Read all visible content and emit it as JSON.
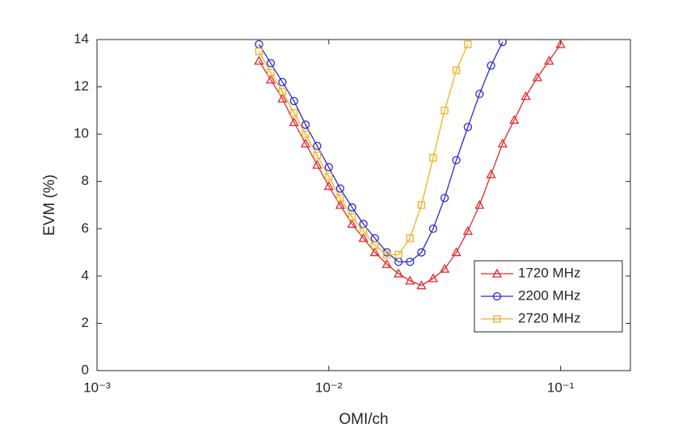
{
  "chart_data": {
    "type": "line",
    "x_label": "OMI/ch",
    "y_label": "EVM (%)",
    "xscale": "log",
    "xlim": [
      0.001,
      0.2
    ],
    "xticks": [
      {
        "value": 0.001,
        "label": "10⁻³"
      },
      {
        "value": 0.01,
        "label": "10⁻²"
      },
      {
        "value": 0.1,
        "label": "10⁻¹"
      }
    ],
    "ylim": [
      0,
      14
    ],
    "yticks": [
      0,
      2,
      4,
      6,
      8,
      10,
      12,
      14
    ],
    "grid": false,
    "legend_position": "southeast",
    "series": [
      {
        "name": "1720 MHz",
        "color": "#e3272a",
        "marker": "triangle",
        "x": [
          0.005,
          0.00562,
          0.00631,
          0.00708,
          0.00794,
          0.00891,
          0.01,
          0.0112,
          0.0126,
          0.0141,
          0.0158,
          0.0178,
          0.02,
          0.0224,
          0.0251,
          0.0282,
          0.0316,
          0.0355,
          0.0398,
          0.0447,
          0.0501,
          0.0562,
          0.0631,
          0.0708,
          0.0794,
          0.0891,
          0.1
        ],
        "values": [
          13.1,
          12.3,
          11.5,
          10.5,
          9.6,
          8.7,
          7.8,
          7.0,
          6.2,
          5.6,
          5.0,
          4.5,
          4.1,
          3.8,
          3.6,
          3.9,
          4.3,
          5.0,
          5.9,
          7.0,
          8.3,
          9.6,
          10.6,
          11.6,
          12.4,
          13.1,
          13.8
        ]
      },
      {
        "name": "2200 MHz",
        "color": "#2a2ad6",
        "marker": "circle",
        "x": [
          0.005,
          0.00562,
          0.00631,
          0.00708,
          0.00794,
          0.00891,
          0.01,
          0.0112,
          0.0126,
          0.0141,
          0.0158,
          0.0178,
          0.02,
          0.0224,
          0.0251,
          0.0282,
          0.0316,
          0.0355,
          0.0398,
          0.0447,
          0.0501,
          0.0562
        ],
        "values": [
          13.8,
          13.0,
          12.2,
          11.4,
          10.4,
          9.5,
          8.6,
          7.7,
          6.9,
          6.2,
          5.6,
          5.0,
          4.6,
          4.6,
          5.0,
          6.0,
          7.3,
          8.9,
          10.3,
          11.7,
          12.9,
          13.9
        ]
      },
      {
        "name": "2720 MHz",
        "color": "#edb120",
        "marker": "square",
        "x": [
          0.005,
          0.00562,
          0.00631,
          0.00708,
          0.00794,
          0.00891,
          0.01,
          0.0112,
          0.0126,
          0.0141,
          0.0158,
          0.0178,
          0.02,
          0.0224,
          0.0251,
          0.0282,
          0.0316,
          0.0355,
          0.0398
        ],
        "values": [
          13.5,
          12.6,
          11.8,
          10.9,
          10.0,
          9.1,
          8.2,
          7.3,
          6.5,
          5.9,
          5.3,
          4.9,
          4.9,
          5.6,
          7.0,
          9.0,
          11.0,
          12.7,
          13.8
        ]
      }
    ]
  }
}
